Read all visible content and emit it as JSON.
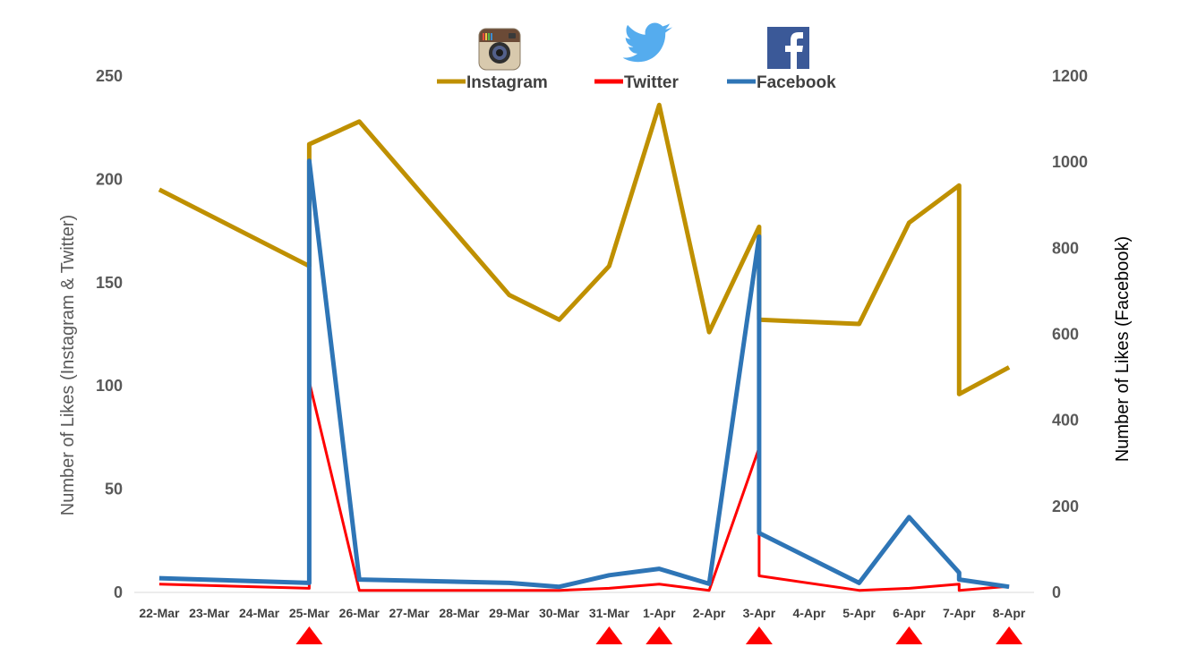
{
  "chart_data": {
    "type": "line",
    "categories": [
      "22-Mar",
      "23-Mar",
      "24-Mar",
      "25-Mar",
      "26-Mar",
      "27-Mar",
      "28-Mar",
      "29-Mar",
      "30-Mar",
      "31-Mar",
      "1-Apr",
      "2-Apr",
      "3-Apr",
      "4-Apr",
      "5-Apr",
      "6-Apr",
      "7-Apr",
      "8-Apr"
    ],
    "ylabel": "Number of Likes (Instagram & Twitter)",
    "y2label": "Number of Likes (Facebook)",
    "ylim": [
      0,
      250
    ],
    "y2lim": [
      0,
      1200
    ],
    "yticks": [
      "0",
      "50",
      "100",
      "150",
      "200",
      "250"
    ],
    "y2ticks": [
      "0",
      "200",
      "400",
      "600",
      "800",
      "1000",
      "1200"
    ],
    "legend_position": "top-center",
    "grid": false,
    "series": [
      {
        "name": "Instagram",
        "axis": "left",
        "color": "#bf9000",
        "icon": "instagram-icon",
        "points": [
          [
            0,
            195
          ],
          [
            3,
            158
          ],
          [
            3,
            217
          ],
          [
            4,
            228
          ],
          [
            7,
            144
          ],
          [
            8,
            132
          ],
          [
            9,
            158
          ],
          [
            10,
            236
          ],
          [
            11,
            126
          ],
          [
            12,
            177
          ],
          [
            12,
            132
          ],
          [
            14,
            130
          ],
          [
            15,
            179
          ],
          [
            16,
            197
          ],
          [
            16,
            96
          ],
          [
            17,
            109
          ]
        ]
      },
      {
        "name": "Twitter",
        "axis": "left",
        "color": "#ff0000",
        "icon": "twitter-icon",
        "points": [
          [
            0,
            4
          ],
          [
            3,
            2
          ],
          [
            3,
            102
          ],
          [
            4,
            1
          ],
          [
            8,
            1
          ],
          [
            9,
            2
          ],
          [
            10,
            4
          ],
          [
            11,
            1
          ],
          [
            12,
            70
          ],
          [
            12,
            8
          ],
          [
            14,
            1
          ],
          [
            15,
            2
          ],
          [
            16,
            4
          ],
          [
            16,
            1
          ],
          [
            17,
            3
          ]
        ]
      },
      {
        "name": "Facebook",
        "axis": "right",
        "color": "#2e75b6",
        "icon": "facebook-icon",
        "points": [
          [
            0,
            33
          ],
          [
            3,
            22
          ],
          [
            3,
            1003
          ],
          [
            4,
            30
          ],
          [
            7,
            22
          ],
          [
            8,
            13
          ],
          [
            9,
            40
          ],
          [
            10,
            55
          ],
          [
            11,
            20
          ],
          [
            12,
            827
          ],
          [
            12,
            138
          ],
          [
            14,
            22
          ],
          [
            15,
            175
          ],
          [
            16,
            46
          ],
          [
            16,
            30
          ],
          [
            17,
            13
          ]
        ]
      }
    ],
    "markers": {
      "shape": "triangle",
      "color": "#ff0000",
      "categories": [
        "25-Mar",
        "31-Mar",
        "1-Apr",
        "3-Apr",
        "6-Apr",
        "8-Apr"
      ]
    }
  }
}
